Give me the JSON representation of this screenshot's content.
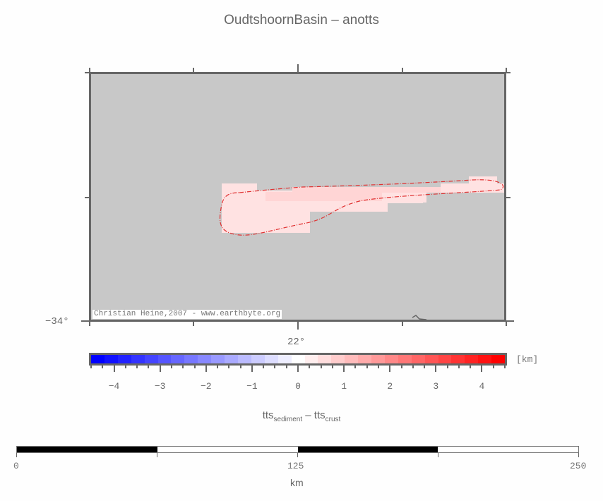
{
  "title": "OudtshoornBasin – anotts",
  "map": {
    "background_color": "#c8c8c8",
    "frame_color": "#666666",
    "credit": "Christian Heine,2007 - www.earthbyte.org",
    "lat_label": "−34°",
    "lon_label": "22°",
    "feature": {
      "name": "basin-outline",
      "fill_colors": [
        "#ffe2e2",
        "#ffd5d5"
      ],
      "outline_color": "#e03030",
      "outline_style": "dash-dot"
    }
  },
  "colorbar": {
    "unit": "[km]",
    "range": [
      -4.5,
      4.5
    ],
    "tick_labels": [
      "−4",
      "−3",
      "−2",
      "−1",
      "0",
      "1",
      "2",
      "3",
      "4"
    ],
    "colors": [
      "#0000ff",
      "#1111ff",
      "#2222ff",
      "#3333ff",
      "#4444ff",
      "#5555ff",
      "#6666ff",
      "#7777ff",
      "#8888ff",
      "#9999ff",
      "#aaaaff",
      "#bbbbff",
      "#ccccff",
      "#ddddff",
      "#eeeeff",
      "#ffffff",
      "#ffeeee",
      "#ffdddd",
      "#ffcccc",
      "#ffbbbb",
      "#ffaaaa",
      "#ff9999",
      "#ff8888",
      "#ff7777",
      "#ff6666",
      "#ff5555",
      "#ff4444",
      "#ff3333",
      "#ff2222",
      "#ff1111",
      "#ff0000"
    ]
  },
  "xlabel": {
    "main1": "tts",
    "sub1": "sediment",
    "sep": " – ",
    "main2": "tts",
    "sub2": "crust"
  },
  "scalebar": {
    "labels": [
      "0",
      "125",
      "250"
    ],
    "unit": "km",
    "segments": [
      "#000000",
      "#ffffff",
      "#000000",
      "#ffffff"
    ]
  }
}
